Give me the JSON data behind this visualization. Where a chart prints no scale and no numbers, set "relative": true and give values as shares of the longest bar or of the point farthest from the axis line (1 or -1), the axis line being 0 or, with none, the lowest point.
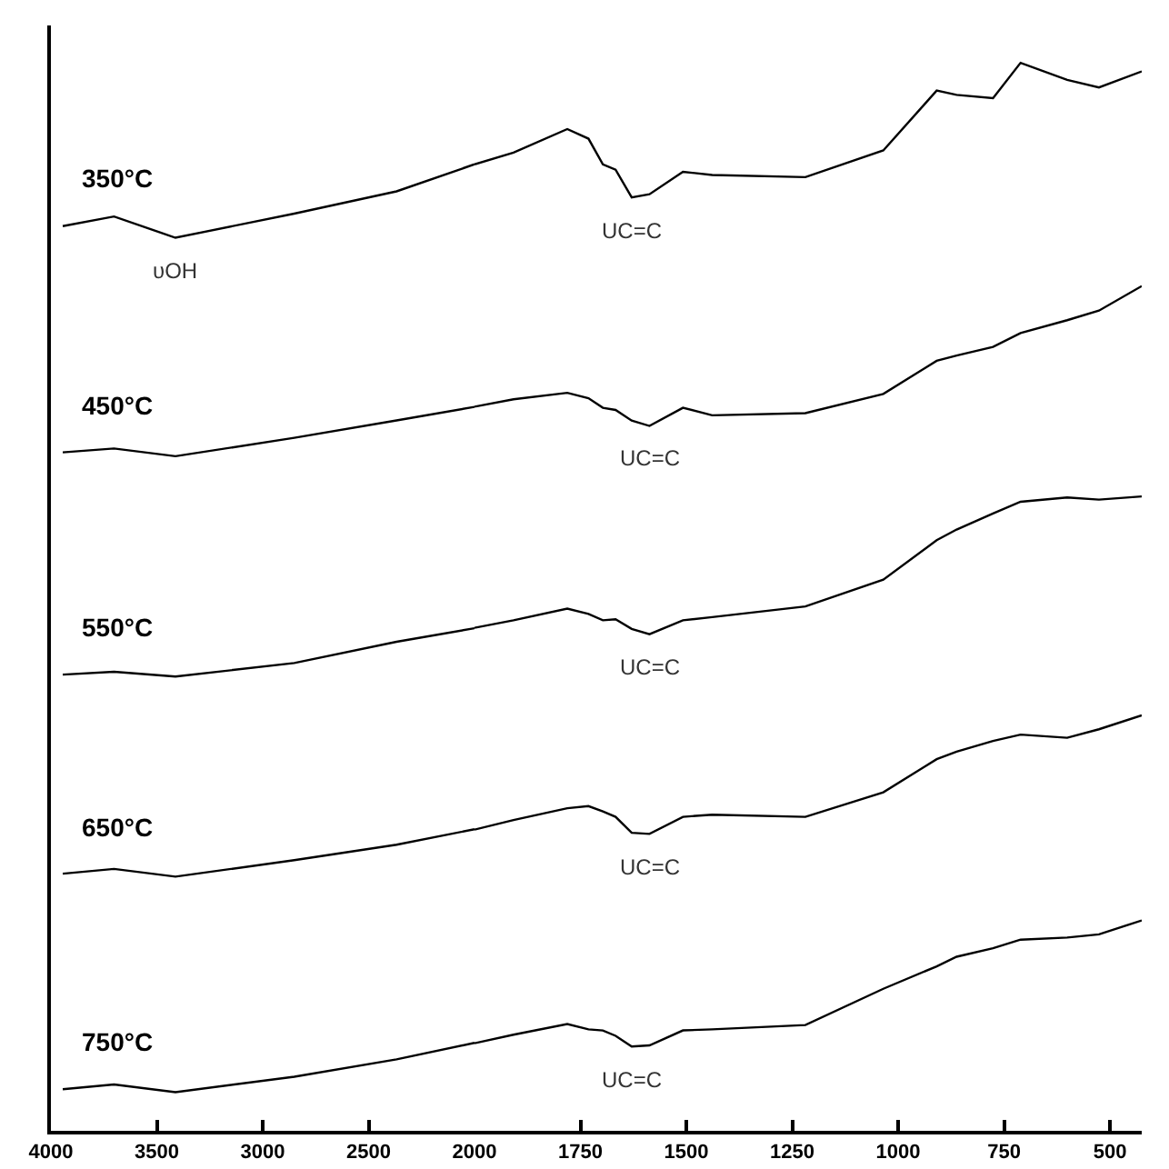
{
  "chart_data": [
    {
      "type": "line",
      "relative": true,
      "legend": false,
      "grid": false,
      "marker": "none",
      "line_style": "solid",
      "x": [
        3944,
        3702,
        3412,
        2851,
        2368,
        2000
      ],
      "xlim": [
        4000,
        2000
      ],
      "xticks": [
        4000,
        3500,
        3000,
        2500,
        2000
      ],
      "series": [
        {
          "name": "350°C",
          "color": "#000000",
          "values": [
            0.936,
            0.946,
            0.924,
            0.949,
            0.972,
            1.0
          ]
        },
        {
          "name": "450°C",
          "color": "#000000",
          "values": [
            0.702,
            0.706,
            0.698,
            0.717,
            0.735,
            0.749
          ]
        },
        {
          "name": "550°C",
          "color": "#000000",
          "values": [
            0.472,
            0.475,
            0.47,
            0.484,
            0.506,
            0.52
          ]
        },
        {
          "name": "650°C",
          "color": "#000000",
          "values": [
            0.266,
            0.271,
            0.263,
            0.28,
            0.296,
            0.312
          ]
        },
        {
          "name": "750°C",
          "color": "#000000",
          "values": [
            0.043,
            0.048,
            0.04,
            0.056,
            0.074,
            0.091
          ]
        }
      ],
      "annotations": [
        "υOH"
      ]
    },
    {
      "type": "line",
      "relative": true,
      "legend": false,
      "grid": false,
      "marker": "none",
      "line_style": "solid",
      "x": [
        2000,
        1908,
        1781,
        1731,
        1697,
        1667,
        1629,
        1587,
        1508,
        1439,
        1219,
        1035,
        909,
        862,
        776,
        711,
        601,
        526,
        425
      ],
      "xlim": [
        2000,
        425
      ],
      "xticks": [
        1750,
        1500,
        1250,
        1000,
        750,
        500
      ],
      "series": [
        {
          "color": "#000000",
          "values": [
            0.905,
            0.916,
            0.938,
            0.929,
            0.905,
            0.9,
            0.874,
            0.877,
            0.898,
            0.895,
            0.893,
            0.918,
            0.974,
            0.97,
            0.967,
            1.0,
            0.984,
            0.977,
            0.992
          ]
        },
        {
          "color": "#000000",
          "values": [
            0.678,
            0.685,
            0.691,
            0.686,
            0.677,
            0.675,
            0.665,
            0.66,
            0.677,
            0.67,
            0.672,
            0.69,
            0.721,
            0.726,
            0.734,
            0.747,
            0.759,
            0.768,
            0.791
          ]
        },
        {
          "color": "#000000",
          "values": [
            0.471,
            0.478,
            0.489,
            0.484,
            0.478,
            0.479,
            0.47,
            0.465,
            0.478,
            0.481,
            0.491,
            0.516,
            0.553,
            0.563,
            0.578,
            0.589,
            0.593,
            0.591,
            0.594
          ]
        },
        {
          "color": "#000000",
          "values": [
            0.282,
            0.291,
            0.302,
            0.304,
            0.299,
            0.294,
            0.279,
            0.278,
            0.294,
            0.296,
            0.294,
            0.317,
            0.348,
            0.355,
            0.365,
            0.371,
            0.368,
            0.376,
            0.389
          ]
        },
        {
          "color": "#000000",
          "values": [
            0.082,
            0.09,
            0.1,
            0.095,
            0.094,
            0.089,
            0.079,
            0.08,
            0.094,
            0.095,
            0.099,
            0.133,
            0.154,
            0.163,
            0.171,
            0.179,
            0.181,
            0.184,
            0.197
          ]
        }
      ],
      "annotations": [
        "UC=C",
        "UC=C",
        "UC=C",
        "UC=C",
        "UC=C"
      ]
    }
  ]
}
